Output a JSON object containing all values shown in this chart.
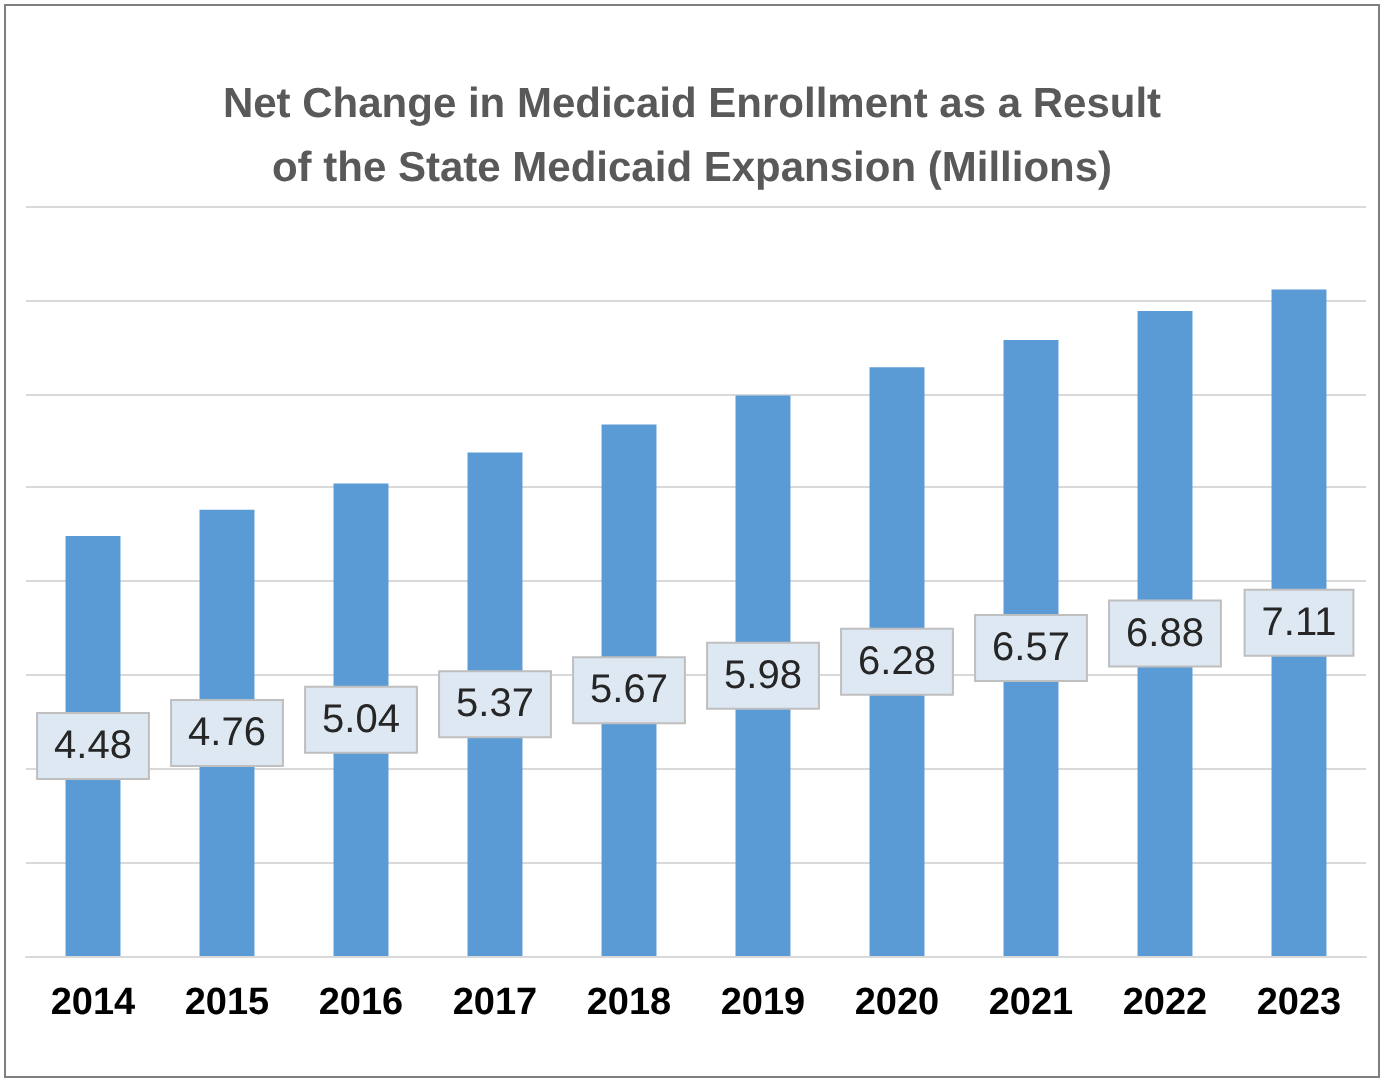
{
  "chart_data": {
    "type": "bar",
    "title": "Net Change in Medicaid Enrollment as a Result\nof the State Medicaid Expansion (Millions)",
    "categories": [
      "2014",
      "2015",
      "2016",
      "2017",
      "2018",
      "2019",
      "2020",
      "2021",
      "2022",
      "2023"
    ],
    "values": [
      4.48,
      4.76,
      5.04,
      5.37,
      5.67,
      5.98,
      6.28,
      6.57,
      6.88,
      7.11
    ],
    "color": "#5b9bd5",
    "ylim": [
      0,
      8
    ],
    "yticks": [
      {
        "value": 0,
        "label": null
      },
      {
        "value": 1,
        "label": null
      },
      {
        "value": 2,
        "label": null
      },
      {
        "value": 3,
        "label": null
      },
      {
        "value": 4,
        "label": null
      },
      {
        "value": 5,
        "label": null
      },
      {
        "value": 6,
        "label": null
      },
      {
        "value": 7,
        "label": null
      },
      {
        "value": 8,
        "label": null
      }
    ],
    "tick_labels": "x",
    "grid": "y",
    "data_labels": true
  }
}
